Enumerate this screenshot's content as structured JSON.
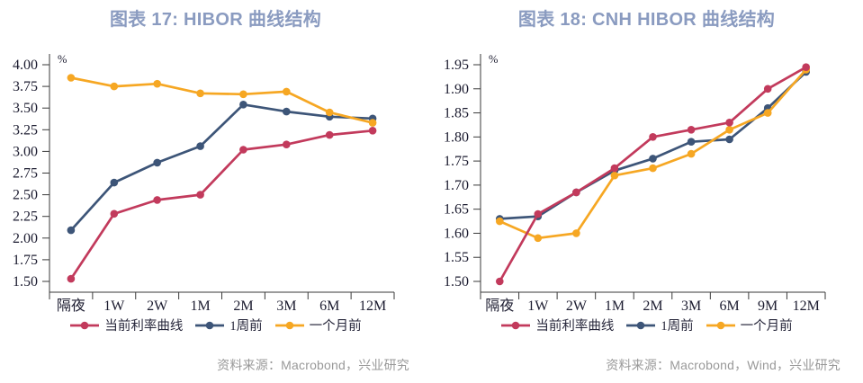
{
  "colors": {
    "current": "#c23a5c",
    "week_ago": "#3d5578",
    "month_ago": "#f6a723",
    "title": "#8a9bc0",
    "axis_line": "#3a3a3a",
    "axis_text": "#1b1b2f",
    "source_text": "#999999"
  },
  "charts": [
    {
      "title": "图表 17: HIBOR 曲线结构",
      "source": "资料来源：Macrobond，兴业研究",
      "chart_data": {
        "type": "line",
        "unit": "%",
        "categories": [
          "隔夜",
          "1W",
          "2W",
          "1M",
          "2M",
          "3M",
          "6M",
          "12M"
        ],
        "ylim": [
          1.5,
          4.0
        ],
        "ytick_step": 0.25,
        "grid": false,
        "legend_position": "bottom",
        "series": [
          {
            "name": "当前利率曲线",
            "color_key": "current",
            "values": [
              1.53,
              2.28,
              2.44,
              2.5,
              3.02,
              3.08,
              3.19,
              3.24
            ]
          },
          {
            "name": "1周前",
            "color_key": "week_ago",
            "values": [
              2.09,
              2.64,
              2.87,
              3.06,
              3.54,
              3.46,
              3.4,
              3.38
            ]
          },
          {
            "name": "一个月前",
            "color_key": "month_ago",
            "values": [
              3.85,
              3.75,
              3.78,
              3.67,
              3.66,
              3.69,
              3.45,
              3.33
            ]
          }
        ]
      }
    },
    {
      "title": "图表 18: CNH HIBOR 曲线结构",
      "source": "资料来源：Macrobond，Wind，兴业研究",
      "chart_data": {
        "type": "line",
        "unit": "%",
        "categories": [
          "隔夜",
          "1W",
          "2W",
          "1M",
          "2M",
          "3M",
          "6M",
          "9M",
          "12M"
        ],
        "ylim": [
          1.5,
          1.95
        ],
        "ytick_step": 0.05,
        "grid": false,
        "legend_position": "bottom",
        "series": [
          {
            "name": "当前利率曲线",
            "color_key": "current",
            "values": [
              1.5,
              1.64,
              1.685,
              1.735,
              1.8,
              1.815,
              1.83,
              1.9,
              1.945
            ]
          },
          {
            "name": "1周前",
            "color_key": "week_ago",
            "values": [
              1.63,
              1.635,
              1.685,
              1.73,
              1.755,
              1.79,
              1.795,
              1.86,
              1.935
            ]
          },
          {
            "name": "一个月前",
            "color_key": "month_ago",
            "values": [
              1.625,
              1.59,
              1.6,
              1.72,
              1.735,
              1.765,
              1.815,
              1.85,
              1.94
            ]
          }
        ]
      }
    }
  ]
}
